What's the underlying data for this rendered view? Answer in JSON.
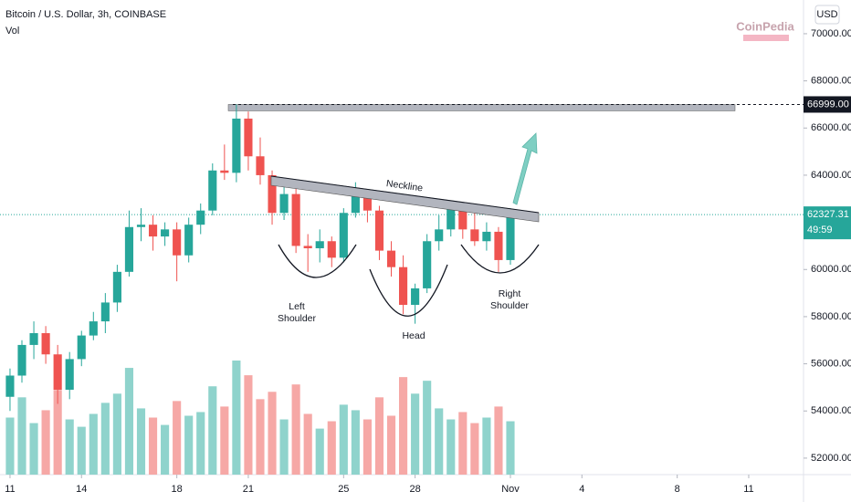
{
  "header": {
    "title": "Bitcoin / U.S. Dollar, 3h, COINBASE",
    "volume_label": "Vol",
    "currency": "USD",
    "watermark": "CoinPedia"
  },
  "chart_data": {
    "type": "candlestick",
    "x": [
      0,
      0.5,
      1,
      1.5,
      2,
      2.5,
      3,
      3.5,
      4,
      4.5,
      5,
      5.5,
      6,
      6.5,
      7,
      7.5,
      8,
      8.5,
      9,
      9.5,
      10,
      10.5,
      11,
      11.5,
      12,
      12.5,
      13,
      13.5,
      14,
      14.5,
      15,
      15.5,
      16,
      16.5,
      17,
      17.5,
      18,
      18.5,
      19,
      19.5,
      20,
      20.5,
      21
    ],
    "open": [
      54600,
      55500,
      56800,
      57300,
      56400,
      54900,
      56200,
      57200,
      57800,
      58600,
      59900,
      61800,
      61900,
      61400,
      61700,
      60600,
      61900,
      62500,
      64200,
      64100,
      66400,
      64800,
      64000,
      62400,
      63200,
      61000,
      60900,
      61200,
      60500,
      62400,
      63300,
      62500,
      60800,
      60100,
      58500,
      59200,
      61200,
      61700,
      62700,
      61700,
      61200,
      61600,
      60400
    ],
    "high": [
      55800,
      57000,
      57800,
      57600,
      56800,
      56500,
      57400,
      58200,
      59000,
      60200,
      62500,
      62600,
      62300,
      62000,
      62000,
      62200,
      62800,
      64500,
      65300,
      67000,
      66700,
      65600,
      64200,
      63600,
      63700,
      61500,
      61700,
      61400,
      62600,
      63700,
      63400,
      62700,
      61200,
      60600,
      59400,
      61500,
      62300,
      62900,
      62800,
      62500,
      62000,
      61800,
      62600
    ],
    "low": [
      54000,
      55200,
      56200,
      56000,
      54300,
      54500,
      55900,
      57000,
      57300,
      58200,
      59700,
      61200,
      60800,
      61000,
      59500,
      60300,
      61500,
      62300,
      63800,
      63700,
      64200,
      63600,
      61900,
      62100,
      60700,
      59900,
      60300,
      60100,
      60300,
      62200,
      62000,
      60400,
      59700,
      58100,
      57700,
      59000,
      60800,
      61400,
      61300,
      61000,
      60800,
      59900,
      60200
    ],
    "close": [
      55500,
      56800,
      57300,
      56400,
      54900,
      56200,
      57200,
      57800,
      58600,
      59900,
      61800,
      61900,
      61400,
      61700,
      60600,
      61900,
      62500,
      64200,
      64100,
      66400,
      64800,
      64000,
      62400,
      63200,
      61000,
      60900,
      61200,
      60500,
      62400,
      63300,
      62500,
      60800,
      60100,
      58500,
      59200,
      61200,
      61700,
      62700,
      61700,
      61200,
      61600,
      60400,
      62300
    ],
    "volume": [
      3.1,
      4.2,
      2.8,
      3.5,
      4.6,
      3.0,
      2.6,
      3.3,
      3.9,
      4.4,
      5.8,
      3.6,
      3.1,
      2.7,
      4.0,
      3.2,
      3.4,
      4.8,
      3.7,
      6.2,
      5.4,
      4.1,
      4.5,
      3.0,
      4.9,
      3.3,
      2.5,
      2.9,
      3.8,
      3.5,
      3.0,
      4.2,
      3.2,
      5.3,
      4.4,
      5.1,
      3.6,
      3.0,
      3.4,
      2.8,
      3.1,
      3.7,
      2.9
    ],
    "xlim": [
      -0.42,
      33.3
    ],
    "xticks": [
      {
        "value": 0,
        "label": "11"
      },
      {
        "value": 3,
        "label": "14"
      },
      {
        "value": 7,
        "label": "18"
      },
      {
        "value": 10,
        "label": "21"
      },
      {
        "value": 14,
        "label": "25"
      },
      {
        "value": 17,
        "label": "28"
      },
      {
        "value": 21,
        "label": "Nov"
      },
      {
        "value": 24,
        "label": "4"
      },
      {
        "value": 28,
        "label": "8"
      },
      {
        "value": 31,
        "label": "11"
      }
    ],
    "ylim": [
      51300,
      71430
    ],
    "yticks": [
      {
        "value": 52000,
        "label": "52000.00"
      },
      {
        "value": 54000,
        "label": "54000.00"
      },
      {
        "value": 56000,
        "label": "56000.00"
      },
      {
        "value": 58000,
        "label": "58000.00"
      },
      {
        "value": 60000,
        "label": "60000.00"
      },
      {
        "value": 62000,
        "label": "62000.00"
      },
      {
        "value": 64000,
        "label": "64000.00"
      },
      {
        "value": 66000,
        "label": "66000.00"
      },
      {
        "value": 68000,
        "label": "68000.00"
      },
      {
        "value": 70000,
        "label": "70000.00"
      }
    ],
    "up_color": "#26a69a",
    "down_color": "#ef5350",
    "volume_up_color": "#8fd3cc",
    "volume_down_color": "#f6a8a6",
    "resistance": {
      "value": 66999,
      "label": "66999.00"
    },
    "last_price": 62327.31,
    "countdown": "49:59",
    "annotations": {
      "neckline": "Neckline",
      "left_shoulder": [
        "Left",
        "Shoulder"
      ],
      "head": "Head",
      "right_shoulder": [
        "Right",
        "Shoulder"
      ]
    }
  }
}
